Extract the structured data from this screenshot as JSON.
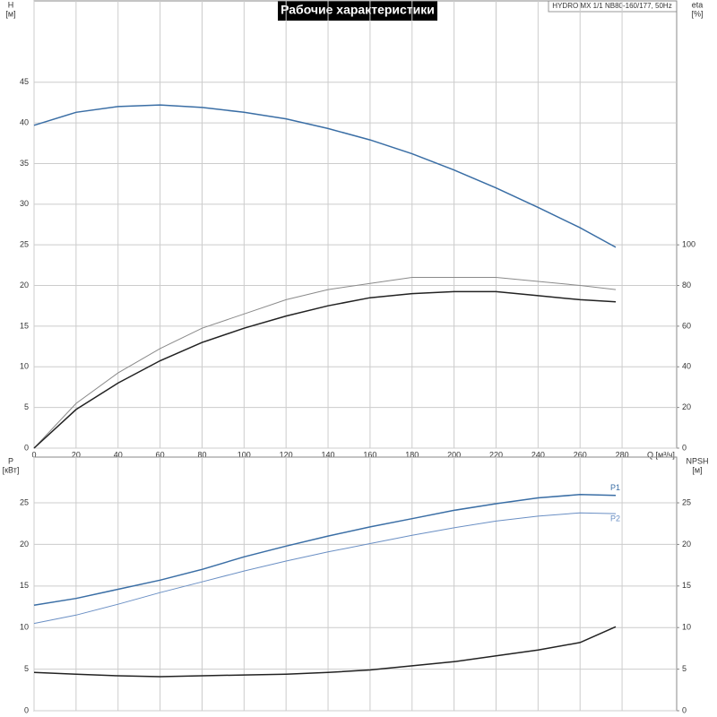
{
  "chart_data": [
    {
      "type": "line",
      "title": "Рабочие характеристики",
      "model": "HYDRO MX 1/1 NB80-160/177, 50Hz",
      "ylabel": "H",
      "yunit": "[м]",
      "y2label": "eta",
      "y2unit": "[%]",
      "xlabel": "Q [м³/ч]",
      "x": [
        0,
        20,
        40,
        60,
        80,
        100,
        120,
        140,
        160,
        180,
        200,
        220,
        240,
        260,
        277
      ],
      "xlim": [
        0,
        306
      ],
      "xticks": [
        0,
        20,
        40,
        60,
        80,
        100,
        120,
        140,
        160,
        180,
        200,
        220,
        240,
        260,
        280
      ],
      "ylim": [
        0,
        55
      ],
      "yticks": [
        0,
        5,
        10,
        15,
        20,
        25,
        30,
        35,
        40,
        45
      ],
      "y2lim": [
        0,
        220
      ],
      "y2ticks": [
        0,
        20,
        40,
        60,
        80,
        100
      ],
      "grid": true,
      "series": [
        {
          "color": "#3a6ea5",
          "values": [
            39.7,
            41.3,
            42,
            42.2,
            41.9,
            41.3,
            40.5,
            39.3,
            37.9,
            36.2,
            34.2,
            32,
            29.6,
            27.1,
            24.7
          ]
        },
        {
          "color": "#8a8a8a",
          "axis": "y2",
          "values": [
            0,
            22,
            37,
            49,
            59,
            66,
            73,
            78,
            81,
            84,
            84,
            84,
            82,
            80,
            78
          ]
        },
        {
          "color": "#222222",
          "axis": "y2",
          "values": [
            0,
            19,
            32,
            43,
            52,
            59,
            65,
            70,
            74,
            76,
            77,
            77,
            75,
            73,
            72
          ]
        }
      ]
    },
    {
      "type": "line",
      "ylabel": "P",
      "yunit": "[кВт]",
      "y2label": "NPSH",
      "y2unit": "[м]",
      "x": [
        0,
        20,
        40,
        60,
        80,
        100,
        120,
        140,
        160,
        180,
        200,
        220,
        240,
        260,
        277
      ],
      "xlim": [
        0,
        306
      ],
      "ylim": [
        0,
        30.5
      ],
      "yticks": [
        0,
        5,
        10,
        15,
        20,
        25
      ],
      "y2lim": [
        0,
        30.5
      ],
      "y2ticks": [
        0,
        5,
        10,
        15,
        20,
        25
      ],
      "grid": true,
      "series": [
        {
          "name": "P1",
          "color": "#3a6ea5",
          "values": [
            12.7,
            13.5,
            14.6,
            15.7,
            17,
            18.5,
            19.8,
            21,
            22.1,
            23.1,
            24.1,
            24.9,
            25.6,
            26,
            25.9
          ]
        },
        {
          "name": "P2",
          "color": "#6a8fc4",
          "values": [
            10.5,
            11.5,
            12.8,
            14.2,
            15.5,
            16.8,
            18,
            19.1,
            20.1,
            21.1,
            22,
            22.8,
            23.4,
            23.8,
            23.7
          ]
        },
        {
          "color": "#222222",
          "axis": "y2",
          "values": [
            4.6,
            4.4,
            4.2,
            4.1,
            4.2,
            4.3,
            4.4,
            4.6,
            4.9,
            5.4,
            5.9,
            6.6,
            7.3,
            8.2,
            10.1
          ]
        }
      ]
    }
  ]
}
